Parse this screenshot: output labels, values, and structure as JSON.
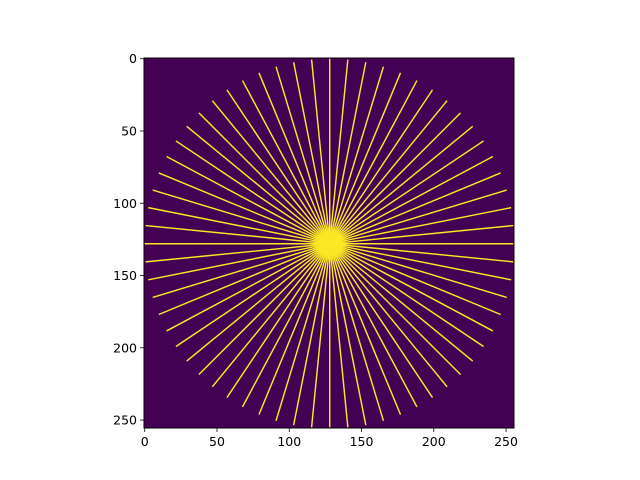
{
  "chart_data": {
    "type": "heatmap",
    "title": "",
    "xlabel": "",
    "ylabel": "",
    "image_size": [
      256,
      256
    ],
    "xlim": [
      0,
      255
    ],
    "ylim": [
      255,
      0
    ],
    "x_ticks": [
      0,
      50,
      100,
      150,
      200,
      250
    ],
    "y_ticks": [
      0,
      50,
      100,
      150,
      200,
      250
    ],
    "colormap": "viridis",
    "values_present": [
      0,
      1
    ],
    "background_color": "#440154",
    "foreground_color": "#fde725",
    "pattern": "radial spokes from center of image to edge of inscribed circle",
    "center": [
      128,
      128
    ],
    "radius": 128,
    "spokes": 64,
    "central_blob_radius": 8,
    "grid": false,
    "legend": "none"
  }
}
